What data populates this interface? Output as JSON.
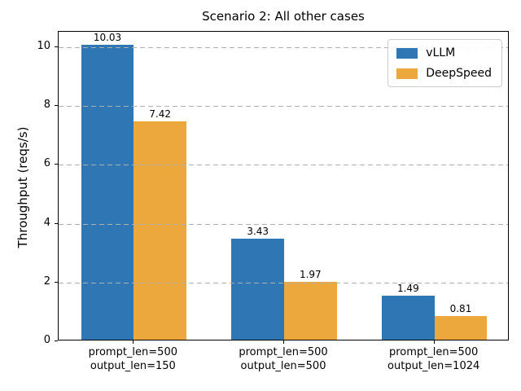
{
  "chart_data": {
    "type": "bar",
    "title": "Scenario 2: All other cases",
    "xlabel": "",
    "ylabel": "Throughput (reqs/s)",
    "categories": [
      "prompt_len=500\noutput_len=150",
      "prompt_len=500\noutput_len=500",
      "prompt_len=500\noutput_len=1024"
    ],
    "series": [
      {
        "name": "vLLM",
        "color": "#2f76b4",
        "values": [
          10.03,
          3.43,
          1.49
        ]
      },
      {
        "name": "DeepSpeed",
        "color": "#eda83d",
        "values": [
          7.42,
          1.97,
          0.81
        ]
      }
    ],
    "value_labels": [
      [
        "10.03",
        "3.43",
        "1.49"
      ],
      [
        "7.42",
        "1.97",
        "0.81"
      ]
    ],
    "yticks": [
      0,
      2,
      4,
      6,
      8,
      10
    ],
    "ylim": [
      0,
      10.53
    ],
    "grid": "dashed-horizontal",
    "grid_color": "#b0b0b0",
    "legend_position": "upper-right",
    "bar_width_fraction": 0.35
  }
}
